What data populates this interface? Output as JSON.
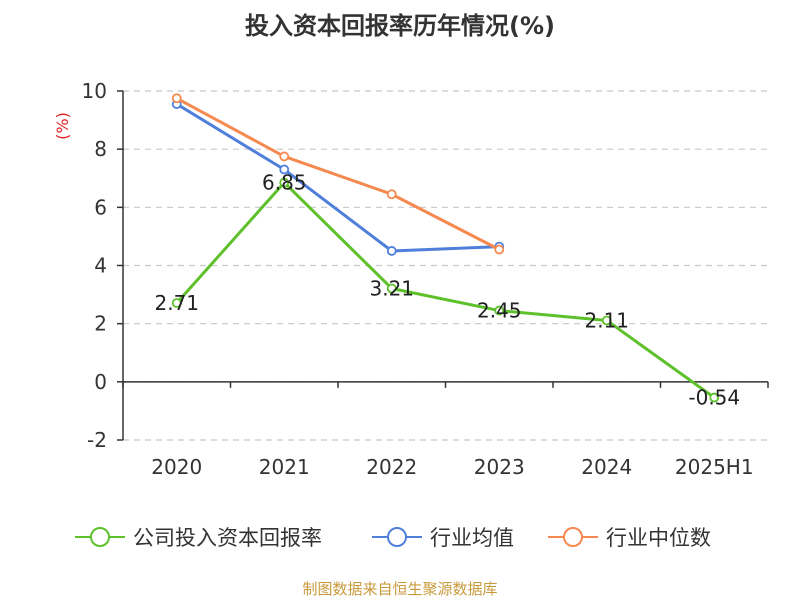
{
  "title": "投入资本回报率历年情况(%)",
  "source": "制图数据来自恒生聚源数据库",
  "colors": {
    "company": "#5ec02b",
    "industry_avg": "#4f7fdb",
    "industry_median": "#f5894f",
    "unit": "#e02020",
    "source": "#c89a3c",
    "axis": "#333333",
    "grid": "#c8c8c8"
  },
  "chart_data": {
    "type": "line",
    "title": "投入资本回报率历年情况(%)",
    "ylabel": "(%)",
    "xlabel": "",
    "categories": [
      "2020",
      "2021",
      "2022",
      "2023",
      "2024",
      "2025H1"
    ],
    "ylim": [
      -2,
      10
    ],
    "yticks": [
      -2,
      0,
      2,
      4,
      6,
      8,
      10
    ],
    "grid": true,
    "legend_position": "bottom",
    "series": [
      {
        "name": "公司投入资本回报率",
        "key": "company",
        "values": [
          2.71,
          6.85,
          3.21,
          2.45,
          2.11,
          -0.54
        ],
        "labels": [
          "2.71",
          "6.85",
          "3.21",
          "2.45",
          "2.11",
          "-0.54"
        ]
      },
      {
        "name": "行业均值",
        "key": "industry_avg",
        "values": [
          9.55,
          7.3,
          4.5,
          4.65,
          null,
          null
        ]
      },
      {
        "name": "行业中位数",
        "key": "industry_median",
        "values": [
          9.75,
          7.75,
          6.45,
          4.55,
          null,
          null
        ]
      }
    ]
  }
}
